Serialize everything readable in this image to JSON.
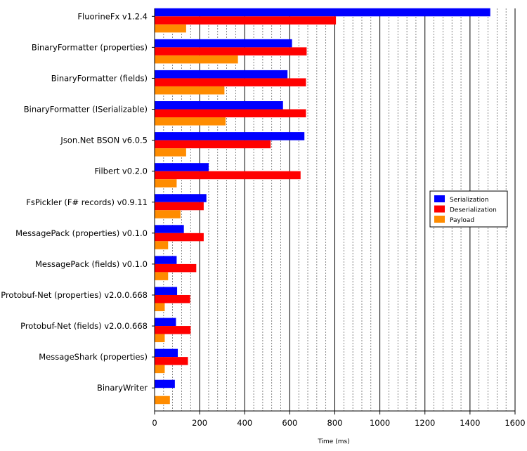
{
  "chart_data": {
    "type": "bar",
    "orientation": "horizontal",
    "title": "",
    "xlabel": "Time (ms)",
    "ylabel": "",
    "xlim": [
      0,
      1600
    ],
    "x_ticks": [
      0,
      200,
      400,
      600,
      800,
      1000,
      1200,
      1400,
      1600
    ],
    "grid": true,
    "legend_position": "right",
    "categories": [
      "FluorineFx v1.2.4",
      "BinaryFormatter (properties)",
      "BinaryFormatter (fields)",
      "BinaryFormatter (ISerializable)",
      "Json.Net BSON v6.0.5",
      "Filbert v0.2.0",
      "FsPickler (F# records) v0.9.11",
      "MessagePack (properties) v0.1.0",
      "MessagePack (fields) v0.1.0",
      "Protobuf-Net (properties) v2.0.0.668",
      "Protobuf-Net (fields) v2.0.0.668",
      "MessageShark (properties)",
      "BinaryWriter"
    ],
    "series": [
      {
        "name": "Serialization",
        "color": "#0000ff",
        "values": [
          1490,
          610,
          590,
          570,
          665,
          240,
          230,
          130,
          98,
          100,
          95,
          103,
          90
        ]
      },
      {
        "name": "Deserialization",
        "color": "#ff0000",
        "values": [
          805,
          675,
          672,
          672,
          515,
          648,
          218,
          218,
          185,
          158,
          160,
          148,
          0
        ]
      },
      {
        "name": "Payload",
        "color": "#ff8c00",
        "values": [
          140,
          370,
          310,
          315,
          140,
          98,
          115,
          60,
          60,
          45,
          45,
          45,
          68
        ]
      }
    ]
  }
}
